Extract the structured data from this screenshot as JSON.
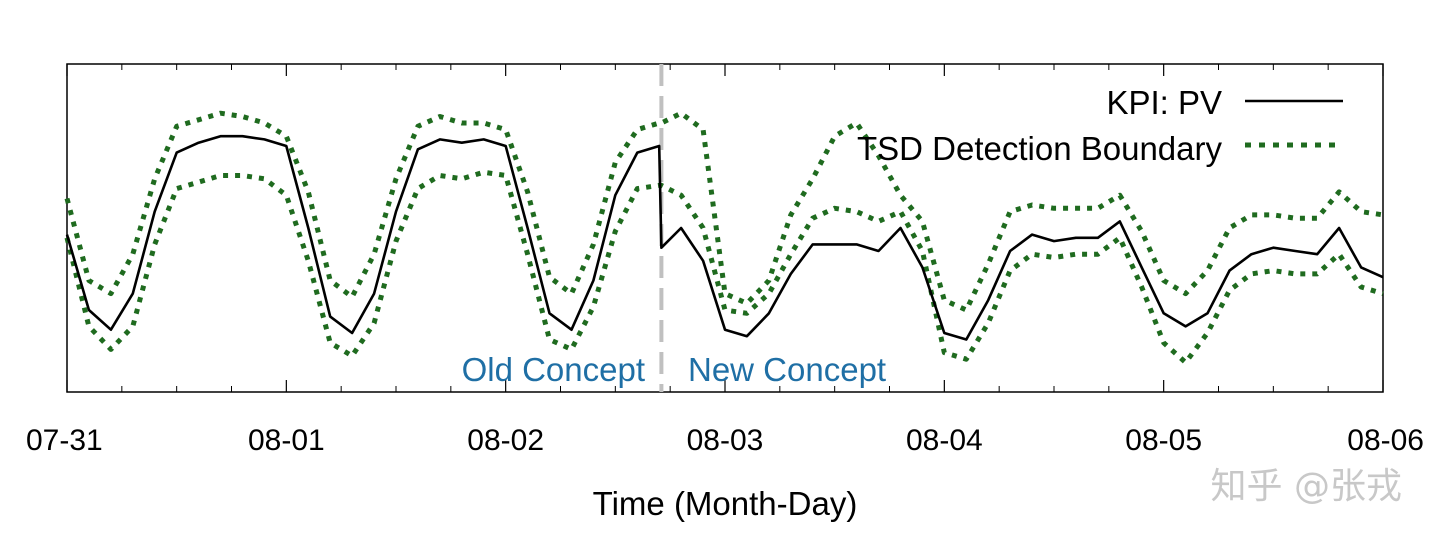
{
  "chart_data": {
    "type": "line",
    "xlabel": "Time (Month-Day)",
    "ylabel": "",
    "x_ticks": [
      "07-31",
      "08-01",
      "08-02",
      "08-03",
      "08-04",
      "08-05",
      "08-06"
    ],
    "xlim": [
      0,
      6
    ],
    "ylim": [
      0,
      1
    ],
    "grid": false,
    "legend_position": "top-right",
    "legend": [
      "KPI: PV",
      "TSD Detection Boundary"
    ],
    "series": [
      {
        "name": "KPI: PV",
        "style": "solid",
        "color": "#000000",
        "x": [
          0,
          0.1,
          0.2,
          0.3,
          0.4,
          0.5,
          0.6,
          0.7,
          0.8,
          0.9,
          1.0,
          1.1,
          1.2,
          1.3,
          1.4,
          1.5,
          1.6,
          1.7,
          1.8,
          1.9,
          2.0,
          2.1,
          2.2,
          2.3,
          2.4,
          2.5,
          2.6,
          2.7,
          2.71,
          2.8,
          2.9,
          3.0,
          3.1,
          3.2,
          3.3,
          3.4,
          3.5,
          3.6,
          3.7,
          3.8,
          3.9,
          4.0,
          4.1,
          4.2,
          4.3,
          4.4,
          4.5,
          4.6,
          4.7,
          4.8,
          4.9,
          5.0,
          5.1,
          5.2,
          5.3,
          5.4,
          5.5,
          5.6,
          5.7,
          5.8,
          5.9,
          6.0
        ],
        "y": [
          0.48,
          0.25,
          0.19,
          0.3,
          0.55,
          0.73,
          0.76,
          0.78,
          0.78,
          0.77,
          0.75,
          0.5,
          0.23,
          0.18,
          0.3,
          0.55,
          0.74,
          0.77,
          0.76,
          0.77,
          0.75,
          0.5,
          0.24,
          0.19,
          0.34,
          0.6,
          0.73,
          0.75,
          0.44,
          0.5,
          0.4,
          0.19,
          0.17,
          0.24,
          0.36,
          0.45,
          0.45,
          0.45,
          0.43,
          0.5,
          0.38,
          0.18,
          0.16,
          0.28,
          0.43,
          0.48,
          0.46,
          0.47,
          0.47,
          0.52,
          0.38,
          0.24,
          0.2,
          0.24,
          0.37,
          0.42,
          0.44,
          0.43,
          0.42,
          0.5,
          0.38,
          0.35
        ]
      },
      {
        "name": "TSD Detection Boundary",
        "style": "dotted",
        "color": "#1f6b1f",
        "x": [
          0,
          0.1,
          0.2,
          0.3,
          0.4,
          0.5,
          0.6,
          0.7,
          0.8,
          0.9,
          1.0,
          1.1,
          1.2,
          1.3,
          1.4,
          1.5,
          1.6,
          1.7,
          1.8,
          1.9,
          2.0,
          2.1,
          2.2,
          2.3,
          2.4,
          2.5,
          2.6,
          2.7,
          2.71,
          2.8,
          2.9,
          3.0,
          3.1,
          3.2,
          3.3,
          3.4,
          3.5,
          3.6,
          3.7,
          3.8,
          3.9,
          4.0,
          4.1,
          4.2,
          4.3,
          4.4,
          4.5,
          4.6,
          4.7,
          4.8,
          4.9,
          5.0,
          5.1,
          5.2,
          5.3,
          5.4,
          5.5,
          5.6,
          5.7,
          5.8,
          5.9,
          6.0
        ],
        "y_upper": [
          0.59,
          0.34,
          0.3,
          0.42,
          0.65,
          0.81,
          0.83,
          0.85,
          0.84,
          0.82,
          0.78,
          0.61,
          0.34,
          0.29,
          0.42,
          0.65,
          0.81,
          0.84,
          0.82,
          0.82,
          0.8,
          0.61,
          0.35,
          0.3,
          0.45,
          0.7,
          0.8,
          0.82,
          0.82,
          0.85,
          0.8,
          0.3,
          0.27,
          0.34,
          0.54,
          0.65,
          0.78,
          0.82,
          0.72,
          0.6,
          0.52,
          0.28,
          0.25,
          0.39,
          0.55,
          0.57,
          0.56,
          0.56,
          0.56,
          0.6,
          0.49,
          0.34,
          0.3,
          0.37,
          0.5,
          0.54,
          0.54,
          0.53,
          0.53,
          0.61,
          0.55,
          0.54
        ],
        "y_lower": [
          0.47,
          0.2,
          0.13,
          0.2,
          0.45,
          0.62,
          0.64,
          0.66,
          0.66,
          0.65,
          0.6,
          0.4,
          0.15,
          0.11,
          0.21,
          0.46,
          0.62,
          0.66,
          0.65,
          0.67,
          0.66,
          0.42,
          0.16,
          0.13,
          0.26,
          0.49,
          0.62,
          0.63,
          0.63,
          0.6,
          0.5,
          0.25,
          0.24,
          0.3,
          0.42,
          0.53,
          0.56,
          0.55,
          0.52,
          0.55,
          0.43,
          0.12,
          0.1,
          0.21,
          0.37,
          0.42,
          0.41,
          0.42,
          0.42,
          0.47,
          0.32,
          0.15,
          0.09,
          0.18,
          0.31,
          0.36,
          0.37,
          0.36,
          0.36,
          0.42,
          0.32,
          0.3
        ]
      }
    ],
    "concept_drift": {
      "x": 2.71,
      "color": "#c0c0c0",
      "left_label": "Old Concept",
      "right_label": "New Concept",
      "label_color": "#1f6fa5"
    }
  },
  "watermark": "知乎 @张戎"
}
